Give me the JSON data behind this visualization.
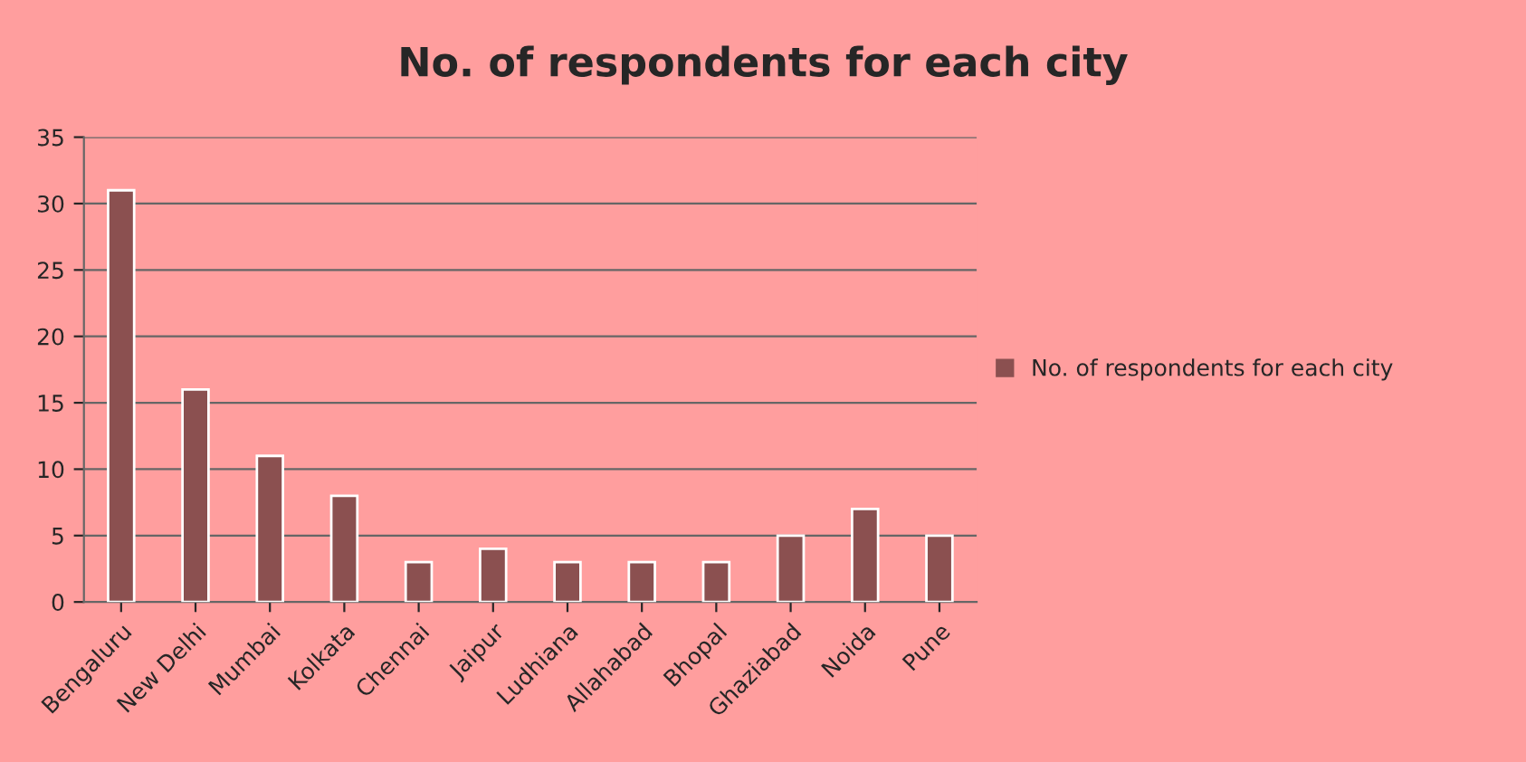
{
  "chart_data": {
    "type": "bar",
    "title": "No. of respondents for each city",
    "categories": [
      "Bengaluru",
      "New Delhi",
      "Mumbai",
      "Kolkata",
      "Chennai",
      "Jaipur",
      "Ludhiana",
      "Allahabad",
      "Bhopal",
      "Ghaziabad",
      "Noida",
      "Pune"
    ],
    "series": [
      {
        "name": "No. of respondents for each city",
        "color": "#8b5050",
        "values": [
          31,
          16,
          11,
          8,
          3,
          4,
          3,
          3,
          3,
          5,
          7,
          5
        ]
      }
    ],
    "ylim": [
      0,
      35
    ],
    "yticks": [
      0,
      5,
      10,
      15,
      20,
      25,
      30,
      35
    ],
    "grid": "y",
    "legend": "right"
  }
}
